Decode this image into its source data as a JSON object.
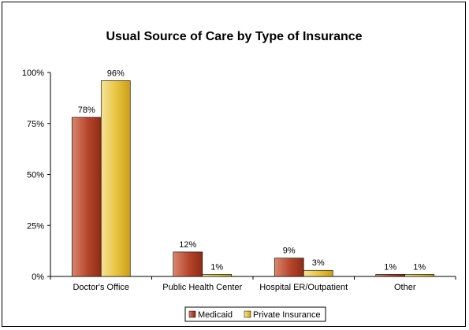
{
  "chart_data": {
    "type": "bar",
    "title": "Usual Source of Care by Type of Insurance",
    "categories": [
      "Doctor's Office",
      "Public Health Center",
      "Hospital ER/Outpatient",
      "Other"
    ],
    "series": [
      {
        "name": "Medicaid",
        "values": [
          78,
          12,
          9,
          1
        ],
        "labels": [
          "78%",
          "12%",
          "9%",
          "1%"
        ],
        "color": "#b5452b"
      },
      {
        "name": "Private Insurance",
        "values": [
          96,
          1,
          3,
          1
        ],
        "labels": [
          "96%",
          "1%",
          "3%",
          "1%"
        ],
        "color": "#e6c23c"
      }
    ],
    "ylim": [
      0,
      100
    ],
    "yticks": [
      0,
      25,
      50,
      75,
      100
    ],
    "ytick_labels": [
      "0%",
      "25%",
      "50%",
      "75%",
      "100%"
    ],
    "grid": false,
    "legend_position": "bottom"
  }
}
